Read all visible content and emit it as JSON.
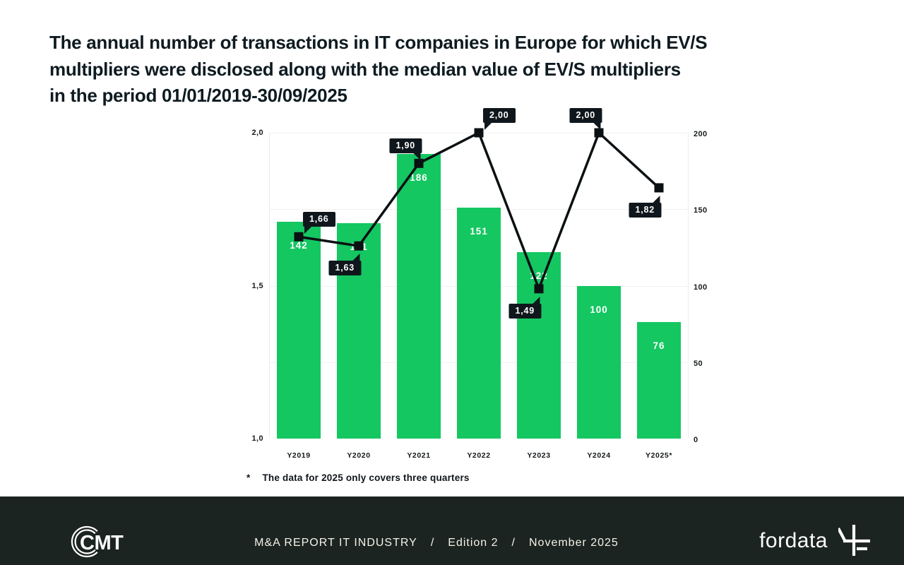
{
  "title": {
    "lines": [
      "The annual number of transactions in IT companies in Europe for which EV/S",
      "multipliers were disclosed along with the median value of EV/S multipliers",
      "in the period 01/01/2019-30/09/2025"
    ],
    "color": "#0e1b21"
  },
  "chart_data": {
    "type": "combo",
    "categories": [
      "Y2019",
      "Y2020",
      "Y2021",
      "Y2022",
      "Y2023",
      "Y2024",
      "Y2025*"
    ],
    "series": [
      {
        "name": "Annual number of transactions with disclosed EV/S multipliers",
        "type": "bar",
        "axis": "right",
        "values": [
          142,
          141,
          186,
          151,
          122,
          100,
          76
        ],
        "color": "#14c761"
      },
      {
        "name": "Median value of EV/S multipliers",
        "type": "line",
        "axis": "left",
        "values": [
          1.66,
          1.63,
          1.9,
          2.0,
          1.49,
          2.0,
          1.82
        ],
        "labels": [
          "1,66",
          "1,63",
          "1,90",
          "2,00",
          "1,49",
          "2,00",
          "1,82"
        ],
        "badge_positions": [
          "tr",
          "bl",
          "tl",
          "tr",
          "bl",
          "tl",
          "bl"
        ],
        "color": "#0b1013"
      }
    ],
    "left_axis": {
      "min": 1.0,
      "max": 2.0,
      "ticks": [
        {
          "label": "2,0",
          "value": 2.0
        },
        {
          "label": "1,5",
          "value": 1.5
        },
        {
          "label": "1,0",
          "value": 1.0
        }
      ]
    },
    "right_axis": {
      "min": 0,
      "max": 200,
      "ticks": [
        {
          "label": "200",
          "value": 200
        },
        {
          "label": "150",
          "value": 150
        },
        {
          "label": "100",
          "value": 100
        },
        {
          "label": "50",
          "value": 50
        },
        {
          "label": "0",
          "value": 0
        }
      ]
    },
    "grid": true,
    "legend": "none",
    "badge_bg": "#10171c",
    "footnote": {
      "mark": "*",
      "text": "The data for 2025 only covers three quarters"
    }
  },
  "footer": {
    "background": "#1b2420",
    "cmt_logo_text": "CMT",
    "center": {
      "report": "M&A REPORT IT INDUSTRY",
      "sep": "/",
      "edition": "Edition 2",
      "date": "November 2025"
    },
    "fordata_logo_text": "fordata"
  }
}
